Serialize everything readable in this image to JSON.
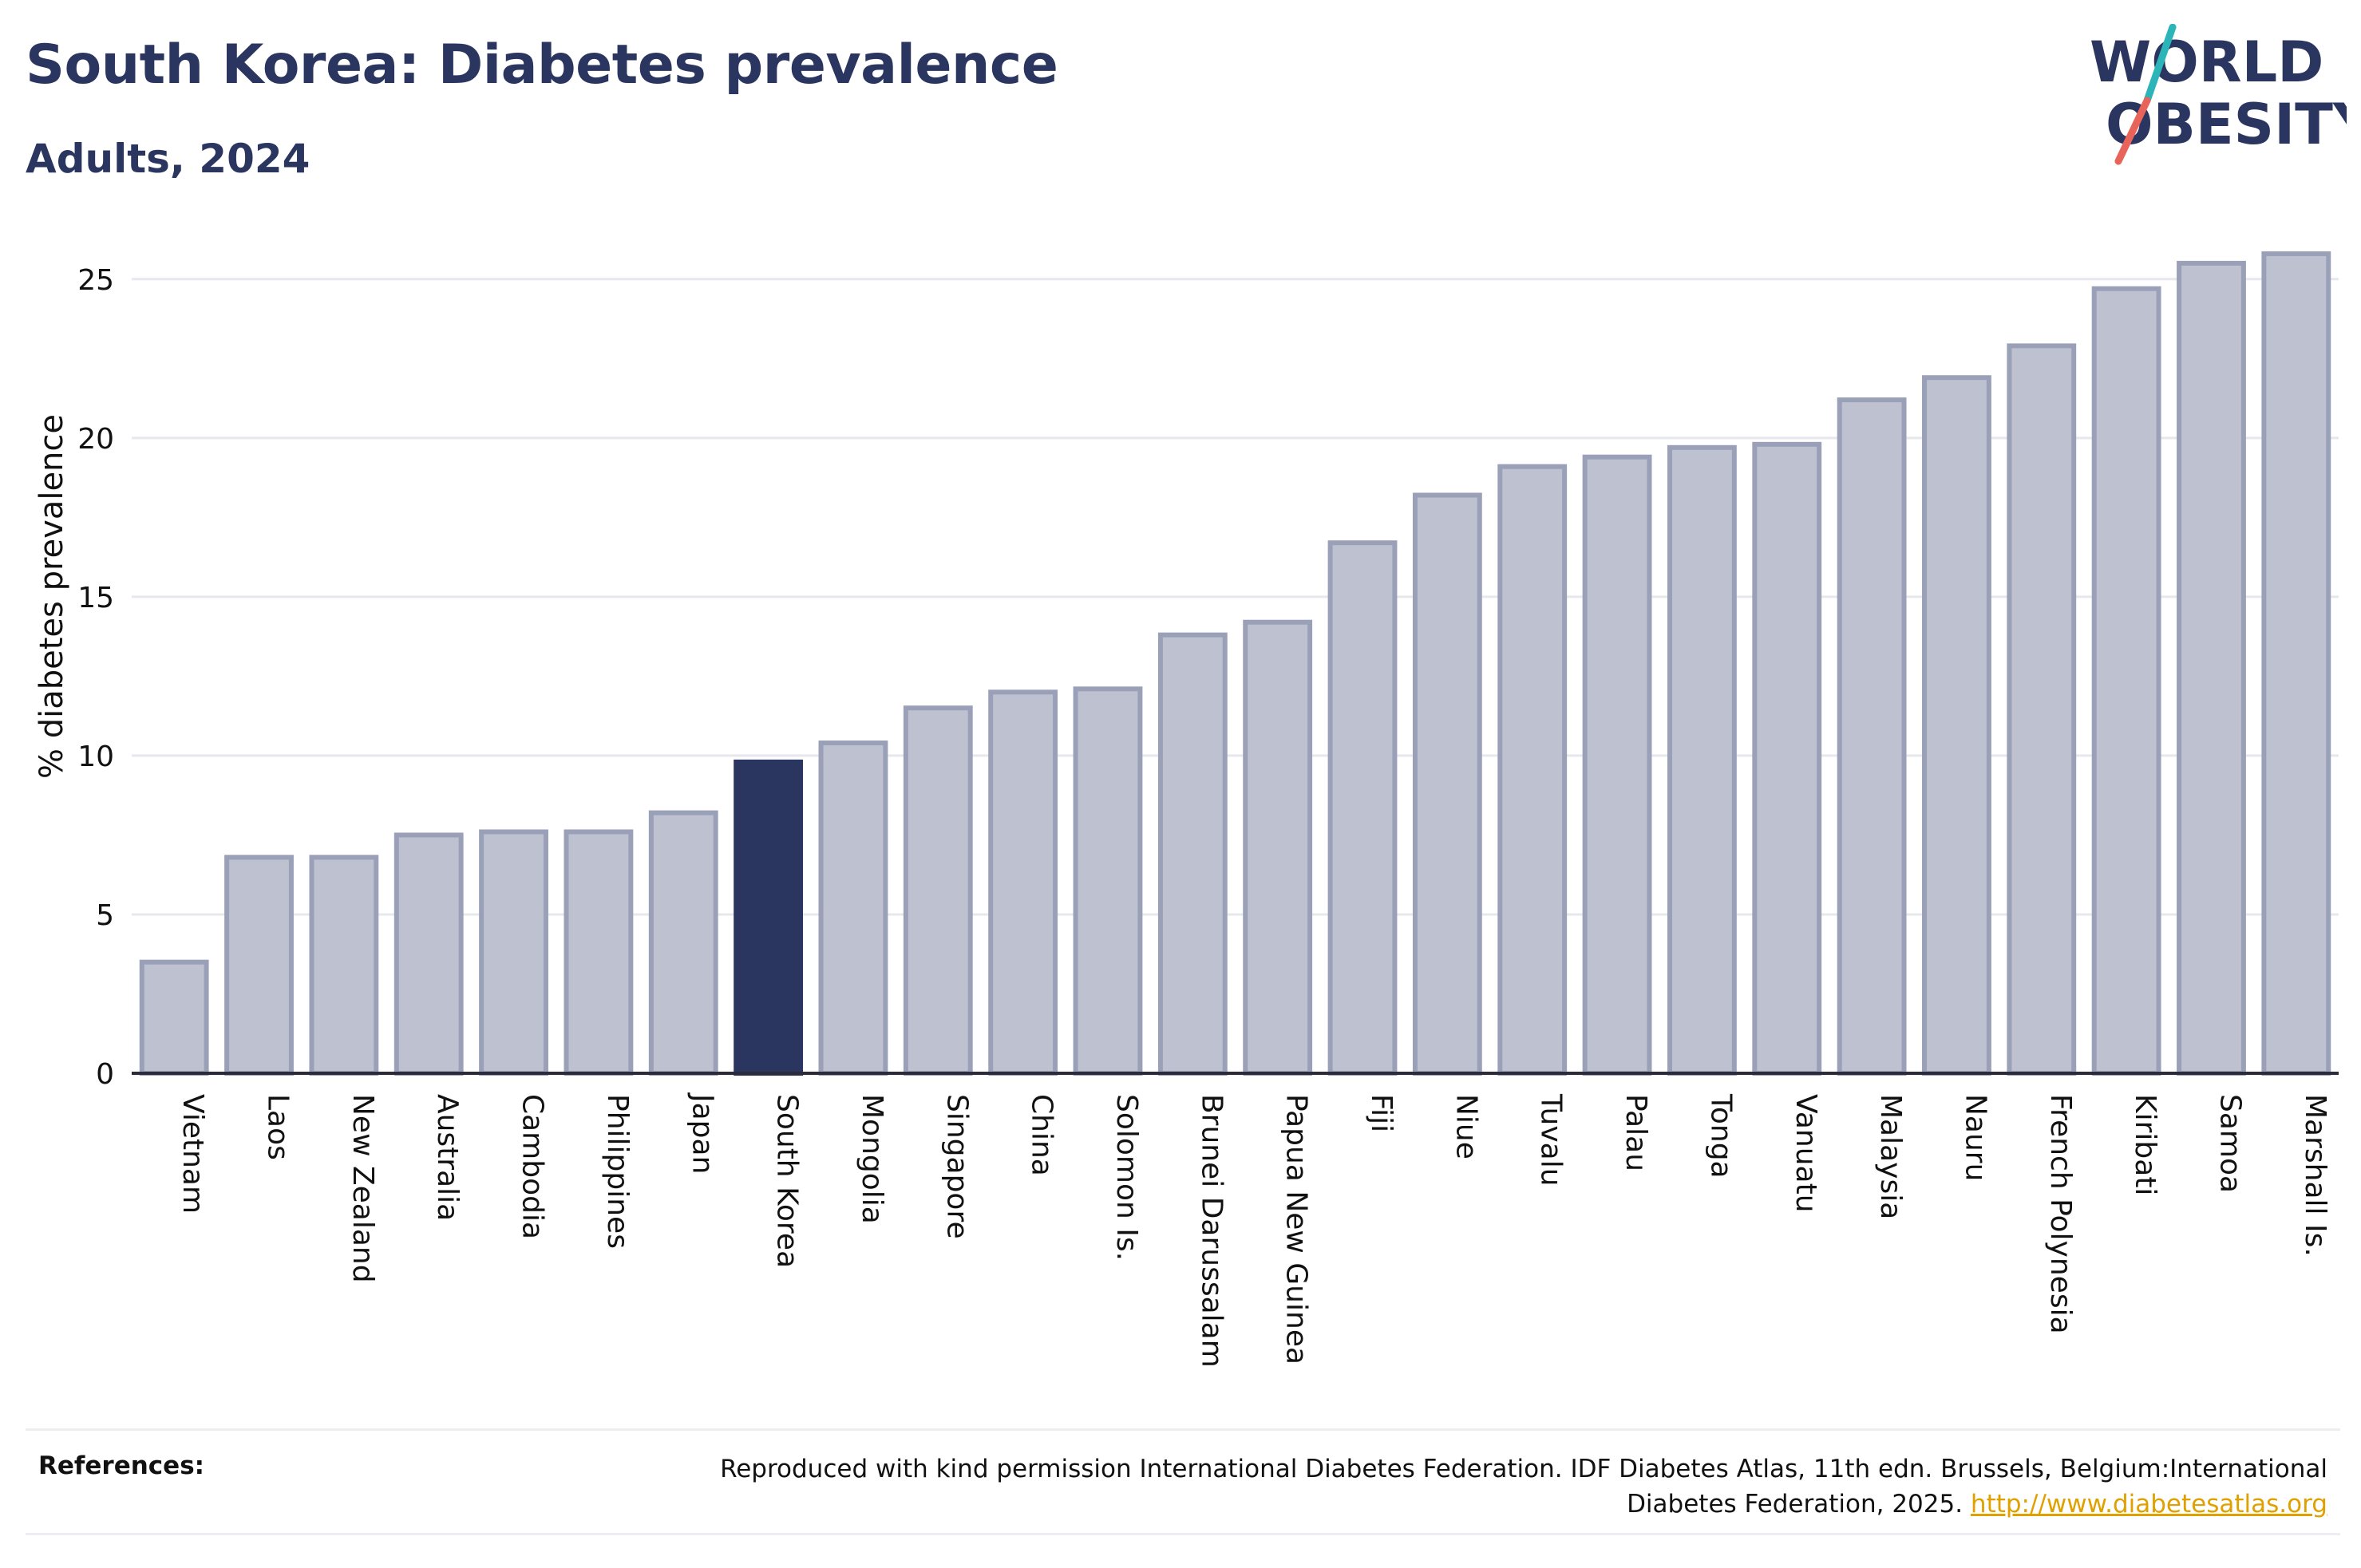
{
  "header": {
    "title": "South Korea: Diabetes prevalence",
    "subtitle": "Adults, 2024"
  },
  "logo": {
    "line1": "WORLD",
    "line2": "OBESITY",
    "colors": {
      "text": "#2b3660",
      "slash_top": "#2bb5b8",
      "slash_bottom": "#e8635a"
    }
  },
  "chart_data": {
    "type": "bar",
    "title": "South Korea: Diabetes prevalence",
    "subtitle": "Adults, 2024",
    "xlabel": "",
    "ylabel": "% diabetes prevalence",
    "ylim": [
      0,
      26
    ],
    "yticks": [
      0,
      5,
      10,
      15,
      20,
      25
    ],
    "grid": true,
    "highlight": "South Korea",
    "colors": {
      "bar": "#bec1cf",
      "bar_edge": "#9aa0b8",
      "highlight": "#2b3660",
      "grid": "#e6e8ee"
    },
    "categories": [
      "Vietnam",
      "Laos",
      "New Zealand",
      "Australia",
      "Cambodia",
      "Philippines",
      "Japan",
      "South Korea",
      "Mongolia",
      "Singapore",
      "China",
      "Solomon Is.",
      "Brunei Darussalam",
      "Papua New Guinea",
      "Fiji",
      "Niue",
      "Tuvalu",
      "Palau",
      "Tonga",
      "Vanuatu",
      "Malaysia",
      "Nauru",
      "French Polynesia",
      "Kiribati",
      "Samoa",
      "Marshall Is."
    ],
    "values": [
      3.5,
      6.8,
      6.8,
      7.5,
      7.6,
      7.6,
      8.2,
      9.8,
      10.4,
      11.5,
      12.0,
      12.1,
      13.8,
      14.2,
      16.7,
      18.2,
      19.1,
      19.4,
      19.7,
      19.8,
      21.2,
      21.9,
      22.9,
      24.7,
      25.5,
      25.8
    ]
  },
  "references": {
    "label": "References:",
    "text": "Reproduced with kind permission International Diabetes Federation. IDF Diabetes Atlas, 11th edn. Brussels, Belgium:International Diabetes Federation, 2025.",
    "link": "http://www.diabetesatlas.org"
  }
}
